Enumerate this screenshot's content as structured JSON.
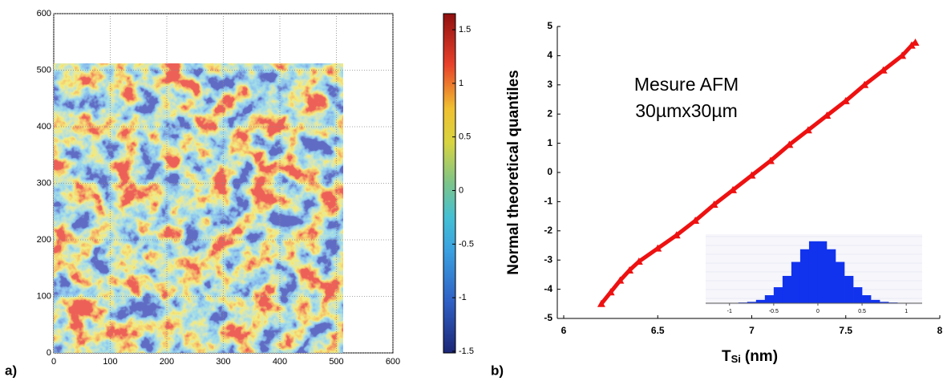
{
  "chart_data": [
    {
      "type": "heatmap",
      "label": "a)",
      "image_extent": [
        512,
        512
      ],
      "xlim": [
        0,
        600
      ],
      "ylim": [
        0,
        600
      ],
      "xticks": [
        0,
        100,
        200,
        300,
        400,
        500,
        600
      ],
      "yticks": [
        0,
        100,
        200,
        300,
        400,
        500,
        600
      ],
      "grid": true,
      "clim": [
        -1.515,
        1.65
      ],
      "cticks": [
        -1.5,
        -1,
        -0.5,
        0,
        0.5,
        1,
        1.5
      ]
    },
    {
      "type": "scatter",
      "label": "b)",
      "xlabel": "T",
      "xlabel_sub": "Si",
      "xlabel_unit": "(nm)",
      "ylabel": "Normal theoretical quantiles",
      "annotation": [
        "Mesure AFM",
        "30µmx30µm"
      ],
      "color": "#ee1111",
      "x": [
        6.2,
        6.25,
        6.3,
        6.35,
        6.4,
        6.5,
        6.6,
        6.7,
        6.8,
        6.9,
        7.0,
        7.1,
        7.2,
        7.3,
        7.4,
        7.5,
        7.6,
        7.7,
        7.8,
        7.85,
        7.87
      ],
      "values": [
        -4.5,
        -4.1,
        -3.7,
        -3.35,
        -3.05,
        -2.6,
        -2.15,
        -1.65,
        -1.1,
        -0.6,
        -0.1,
        0.4,
        0.95,
        1.45,
        1.95,
        2.45,
        3.0,
        3.5,
        4.0,
        4.35,
        4.45
      ],
      "xlim": [
        6,
        8
      ],
      "ylim": [
        -5,
        5
      ],
      "xticks": [
        6,
        6.5,
        7,
        7.5,
        8
      ],
      "yticks": [
        -5,
        -4,
        -3,
        -2,
        -1,
        0,
        1,
        2,
        3,
        4,
        5
      ]
    },
    {
      "type": "histogram",
      "color": "#1133ee",
      "bins": [
        -1,
        -0.9,
        -0.8,
        -0.7,
        -0.6,
        -0.5,
        -0.4,
        -0.3,
        -0.2,
        -0.1,
        0,
        0.1,
        0.2,
        0.3,
        0.4,
        0.5,
        0.6,
        0.7,
        0.8,
        0.9,
        1
      ],
      "values": [
        0,
        1,
        2,
        5,
        12,
        24,
        41,
        62,
        81,
        93,
        93,
        81,
        62,
        41,
        24,
        12,
        5,
        2,
        1,
        0
      ],
      "xlim": [
        -1.27,
        1.18
      ],
      "ylim": [
        0,
        100
      ],
      "xticks": [
        -1,
        -0.5,
        0,
        0.5,
        1
      ]
    }
  ]
}
